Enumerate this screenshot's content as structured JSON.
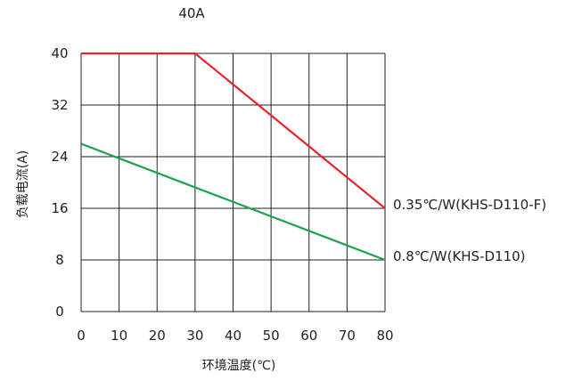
{
  "chart_data": {
    "type": "line",
    "title": "40A",
    "xlabel": "环境温度(℃)",
    "ylabel": "负载电流(A)",
    "xlim": [
      0,
      80
    ],
    "ylim": [
      0,
      40
    ],
    "x_ticks": [
      "0",
      "10",
      "20",
      "30",
      "40",
      "50",
      "60",
      "70",
      "80"
    ],
    "y_ticks": [
      "0",
      "8",
      "16",
      "24",
      "32",
      "40"
    ],
    "grid": true,
    "legend": "series labels at right end of lines",
    "series": [
      {
        "name": "0.35℃/W(KHS-D110-F)",
        "color": "#e8232b",
        "x": [
          0,
          30,
          80
        ],
        "y": [
          40,
          40,
          16
        ]
      },
      {
        "name": "0.8℃/W(KHS-D110)",
        "color": "#18a34a",
        "x": [
          0,
          80
        ],
        "y": [
          26,
          8
        ]
      }
    ]
  }
}
